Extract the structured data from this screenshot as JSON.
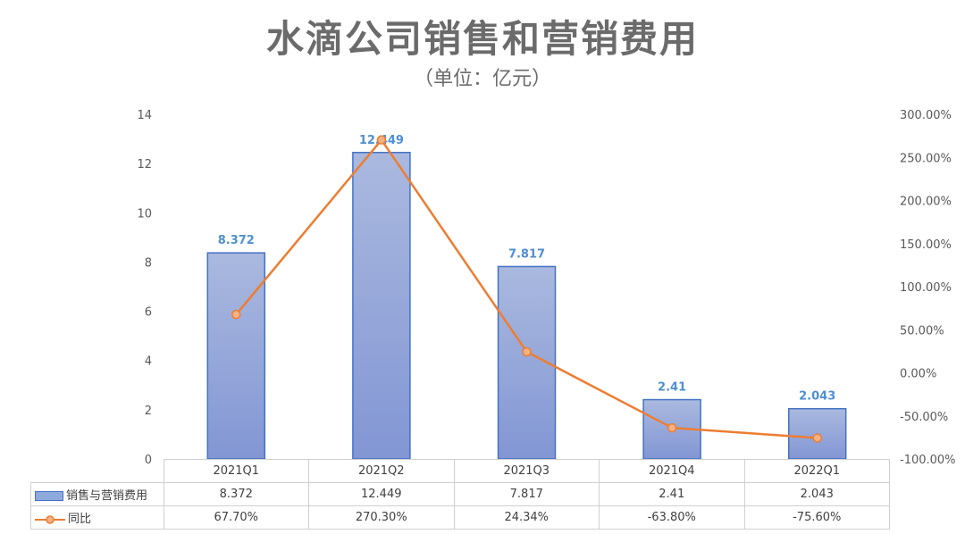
{
  "title": "水滴公司销售和营销费用",
  "subtitle": "（单位：亿元）",
  "chart_data": {
    "type": "bar",
    "categories": [
      "2021Q1",
      "2021Q2",
      "2021Q3",
      "2021Q4",
      "2022Q1"
    ],
    "series": [
      {
        "name": "销售与营销费用",
        "type": "bar",
        "axis": "left",
        "values": [
          8.372,
          12.449,
          7.817,
          2.41,
          2.043
        ],
        "labels": [
          "8.372",
          "12.449",
          "7.817",
          "2.41",
          "2.043"
        ],
        "color": "#8ea9dc"
      },
      {
        "name": "同比",
        "type": "line",
        "axis": "right",
        "values": [
          67.7,
          270.3,
          24.34,
          -63.8,
          -75.6
        ],
        "labels": [
          "67.70%",
          "270.30%",
          "24.34%",
          "-63.80%",
          "-75.60%"
        ],
        "color": "#ed7d31"
      }
    ],
    "left_axis": {
      "ylim": [
        0,
        14
      ],
      "ticks": [
        "0",
        "2",
        "4",
        "6",
        "8",
        "10",
        "12",
        "14"
      ]
    },
    "right_axis": {
      "ylim": [
        -100,
        300
      ],
      "ticks": [
        "-100.00%",
        "-50.00%",
        "0.00%",
        "50.00%",
        "100.00%",
        "150.00%",
        "200.00%",
        "250.00%",
        "300.00%"
      ]
    },
    "grid": false,
    "legend": "data-table-below"
  }
}
